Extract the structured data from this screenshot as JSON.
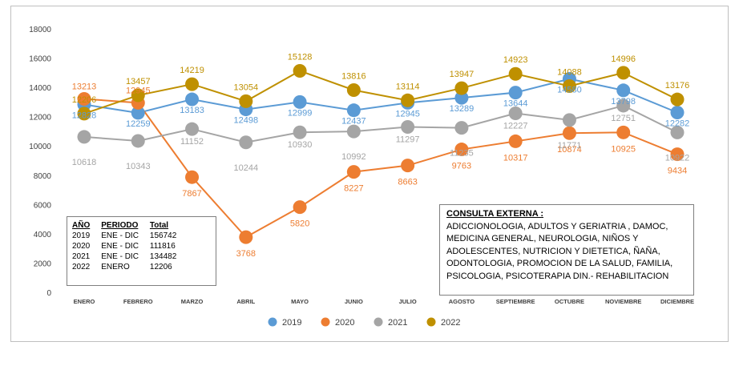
{
  "chart_data": {
    "type": "line",
    "categories": [
      "ENERO",
      "FEBRERO",
      "MARZO",
      "ABRIL",
      "MAYO",
      "JUNIO",
      "JULIO",
      "AGOSTO",
      "SEPTIEMBRE",
      "OCTUBRE",
      "NOVIEMBRE",
      "DICIEMBRE"
    ],
    "ylim": [
      0,
      18000
    ],
    "yticks": [
      0,
      2000,
      4000,
      6000,
      8000,
      10000,
      12000,
      14000,
      16000,
      18000
    ],
    "grid": false,
    "legend_placement": "bottom",
    "series": [
      {
        "name": "2019",
        "color": "#5b9bd5",
        "values": [
          12828,
          12259,
          13183,
          12498,
          12999,
          12437,
          12945,
          13289,
          13644,
          14580,
          13798,
          12282
        ]
      },
      {
        "name": "2020",
        "color": "#ed7d31",
        "values": [
          13213,
          12945,
          7867,
          3768,
          5820,
          8227,
          8663,
          9763,
          10317,
          10874,
          10925,
          9434
        ]
      },
      {
        "name": "2021",
        "color": "#a5a5a5",
        "values": [
          10618,
          10343,
          11152,
          10244,
          10930,
          10992,
          11297,
          11235,
          12227,
          11771,
          12751,
          10922
        ]
      },
      {
        "name": "2022",
        "color": "#bf9000",
        "values": [
          12206,
          13457,
          14219,
          13054,
          15128,
          13816,
          13114,
          13947,
          14923,
          14088,
          14996,
          13176
        ]
      }
    ]
  },
  "summary": {
    "headers": [
      "AÑO",
      "PERIODO",
      "Total"
    ],
    "rows": [
      [
        "2019",
        "ENE - DIC",
        "156742"
      ],
      [
        "2020",
        "ENE - DIC",
        "111816"
      ],
      [
        "2021",
        "ENE - DIC",
        "134482"
      ],
      [
        "2022",
        "ENERO",
        "12206"
      ]
    ]
  },
  "note": {
    "title": "CONSULTA EXTERNA :",
    "lines": [
      "ADICCIONOLOGIA, ADULTOS Y GERIATRIA , DAMOC,",
      "MEDICINA GENERAL, NEUROLOGIA, NIÑOS Y",
      "ADOLESCENTES, NUTRICION Y DIETETICA, ÑAÑA,",
      "ODONTOLOGIA, PROMOCION DE LA SALUD, FAMILIA,",
      "PSICOLOGIA, PSICOTERAPIA DIN.- REHABILITACION"
    ]
  }
}
